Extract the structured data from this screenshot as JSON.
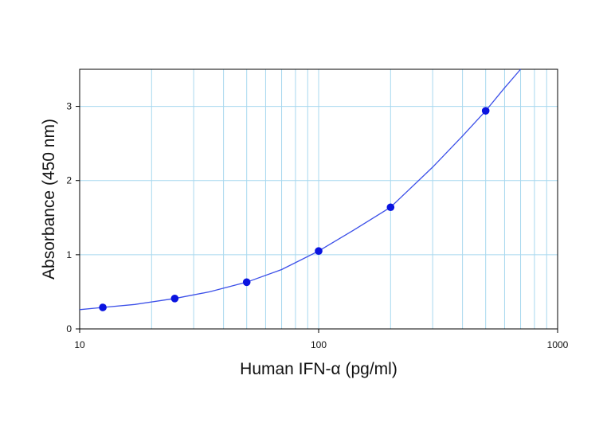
{
  "chart_data": {
    "type": "scatter",
    "x_scale": "log",
    "xlabel": "Human IFN-α (pg/ml)",
    "ylabel": "Absorbance (450 nm)",
    "xlim": [
      10,
      1000
    ],
    "ylim": [
      0,
      3.5
    ],
    "x_ticks": [
      10,
      100,
      1000
    ],
    "x_tick_labels": [
      "10",
      "100",
      "1000"
    ],
    "y_ticks": [
      0,
      1,
      2,
      3
    ],
    "y_tick_labels": [
      "0",
      "1",
      "2",
      "3"
    ],
    "grid": true,
    "series": [
      {
        "points": [
          {
            "x": 12.5,
            "y": 0.29
          },
          {
            "x": 25,
            "y": 0.41
          },
          {
            "x": 50,
            "y": 0.63
          },
          {
            "x": 100,
            "y": 1.05
          },
          {
            "x": 200,
            "y": 1.64
          },
          {
            "x": 500,
            "y": 2.94
          }
        ]
      }
    ],
    "fit_curve": [
      {
        "x": 10,
        "y": 0.26
      },
      {
        "x": 12.5,
        "y": 0.29
      },
      {
        "x": 17,
        "y": 0.33
      },
      {
        "x": 25,
        "y": 0.41
      },
      {
        "x": 35,
        "y": 0.5
      },
      {
        "x": 50,
        "y": 0.63
      },
      {
        "x": 70,
        "y": 0.8
      },
      {
        "x": 100,
        "y": 1.05
      },
      {
        "x": 140,
        "y": 1.33
      },
      {
        "x": 200,
        "y": 1.64
      },
      {
        "x": 300,
        "y": 2.18
      },
      {
        "x": 400,
        "y": 2.6
      },
      {
        "x": 500,
        "y": 2.94
      },
      {
        "x": 600,
        "y": 3.25
      },
      {
        "x": 700,
        "y": 3.5
      }
    ],
    "colors": {
      "points": "#0a14e0",
      "curve": "#3b4fe8",
      "grid": "#a8d8ef",
      "axes": "#000000"
    }
  }
}
